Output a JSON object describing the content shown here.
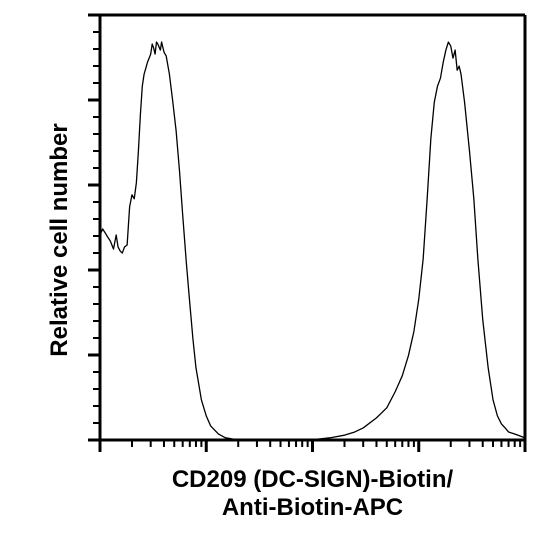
{
  "chart_data": {
    "type": "area",
    "title": "",
    "xlabel_line1": "CD209 (DC-SIGN)-Biotin/",
    "xlabel_line2": "Anti-Biotin-APC",
    "ylabel": "Relative cell number",
    "xscale": "log",
    "xlim": [
      0.1,
      1000
    ],
    "ylim": [
      0,
      100
    ],
    "grid": false,
    "legend": "none",
    "line_color": "#000000",
    "fill": "none",
    "series": [
      {
        "x": [
          0.1,
          0.106,
          0.112,
          0.118,
          0.125,
          0.134,
          0.142,
          0.148,
          0.155,
          0.162,
          0.17,
          0.18,
          0.19,
          0.2,
          0.21,
          0.22,
          0.23,
          0.24,
          0.25,
          0.26,
          0.27,
          0.28,
          0.29,
          0.3,
          0.31,
          0.32,
          0.33,
          0.34,
          0.35,
          0.37,
          0.38,
          0.4,
          0.42,
          0.45,
          0.48,
          0.52,
          0.56,
          0.6,
          0.65,
          0.7,
          0.75,
          0.8,
          0.9,
          1.0,
          1.1,
          1.3,
          1.5,
          1.8,
          2.2,
          2.6,
          3.0,
          3.5,
          4.0,
          5.0,
          6.0,
          7.0,
          8.0,
          10,
          12,
          15,
          20,
          25,
          30,
          40,
          50,
          60,
          70,
          80,
          90,
          100,
          110,
          120,
          130,
          140,
          150,
          160,
          170,
          180,
          190,
          200,
          210,
          220,
          230,
          240,
          250,
          270,
          300,
          330,
          360,
          400,
          450,
          500,
          550,
          600,
          650,
          700,
          800,
          900,
          1000
        ],
        "y": [
          51,
          52.5,
          51.5,
          50.5,
          49.5,
          47.5,
          51,
          48,
          47,
          46.5,
          48,
          48.5,
          58,
          61,
          60,
          64,
          72,
          81,
          88,
          91,
          92.5,
          94,
          95,
          96,
          98.5,
          97.5,
          96,
          99,
          98.5,
          97,
          99,
          96.5,
          95.5,
          91,
          85,
          77,
          67,
          56,
          44,
          34,
          25,
          18,
          10,
          6,
          3.5,
          1.5,
          0.6,
          0.2,
          0,
          0,
          0,
          0,
          0,
          0,
          0,
          0,
          0,
          0.1,
          0.3,
          0.6,
          1.2,
          2,
          3,
          5.5,
          8,
          12,
          16,
          21,
          27,
          35,
          45,
          60,
          75,
          84,
          88,
          90,
          94,
          97,
          99,
          98,
          95,
          97,
          92,
          93,
          91,
          84,
          72,
          60,
          45,
          30,
          18,
          10,
          6,
          4,
          3,
          2,
          1.5,
          1,
          0.5
        ]
      }
    ]
  }
}
